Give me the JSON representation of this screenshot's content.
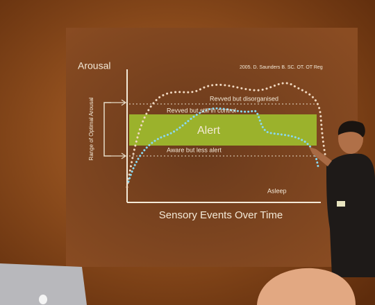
{
  "slide": {
    "y_axis_label": "Arousal",
    "credit": "2005. D. Saunders  B. SC. OT. OT Reg",
    "zones": [
      "Revved but disorganised",
      "Revved but still in control",
      "Alert",
      "Aware but less alert",
      "Asleep"
    ],
    "range_label": "Range of Optimal Arousal",
    "x_axis_label": "Sensory Events Over Time"
  }
}
